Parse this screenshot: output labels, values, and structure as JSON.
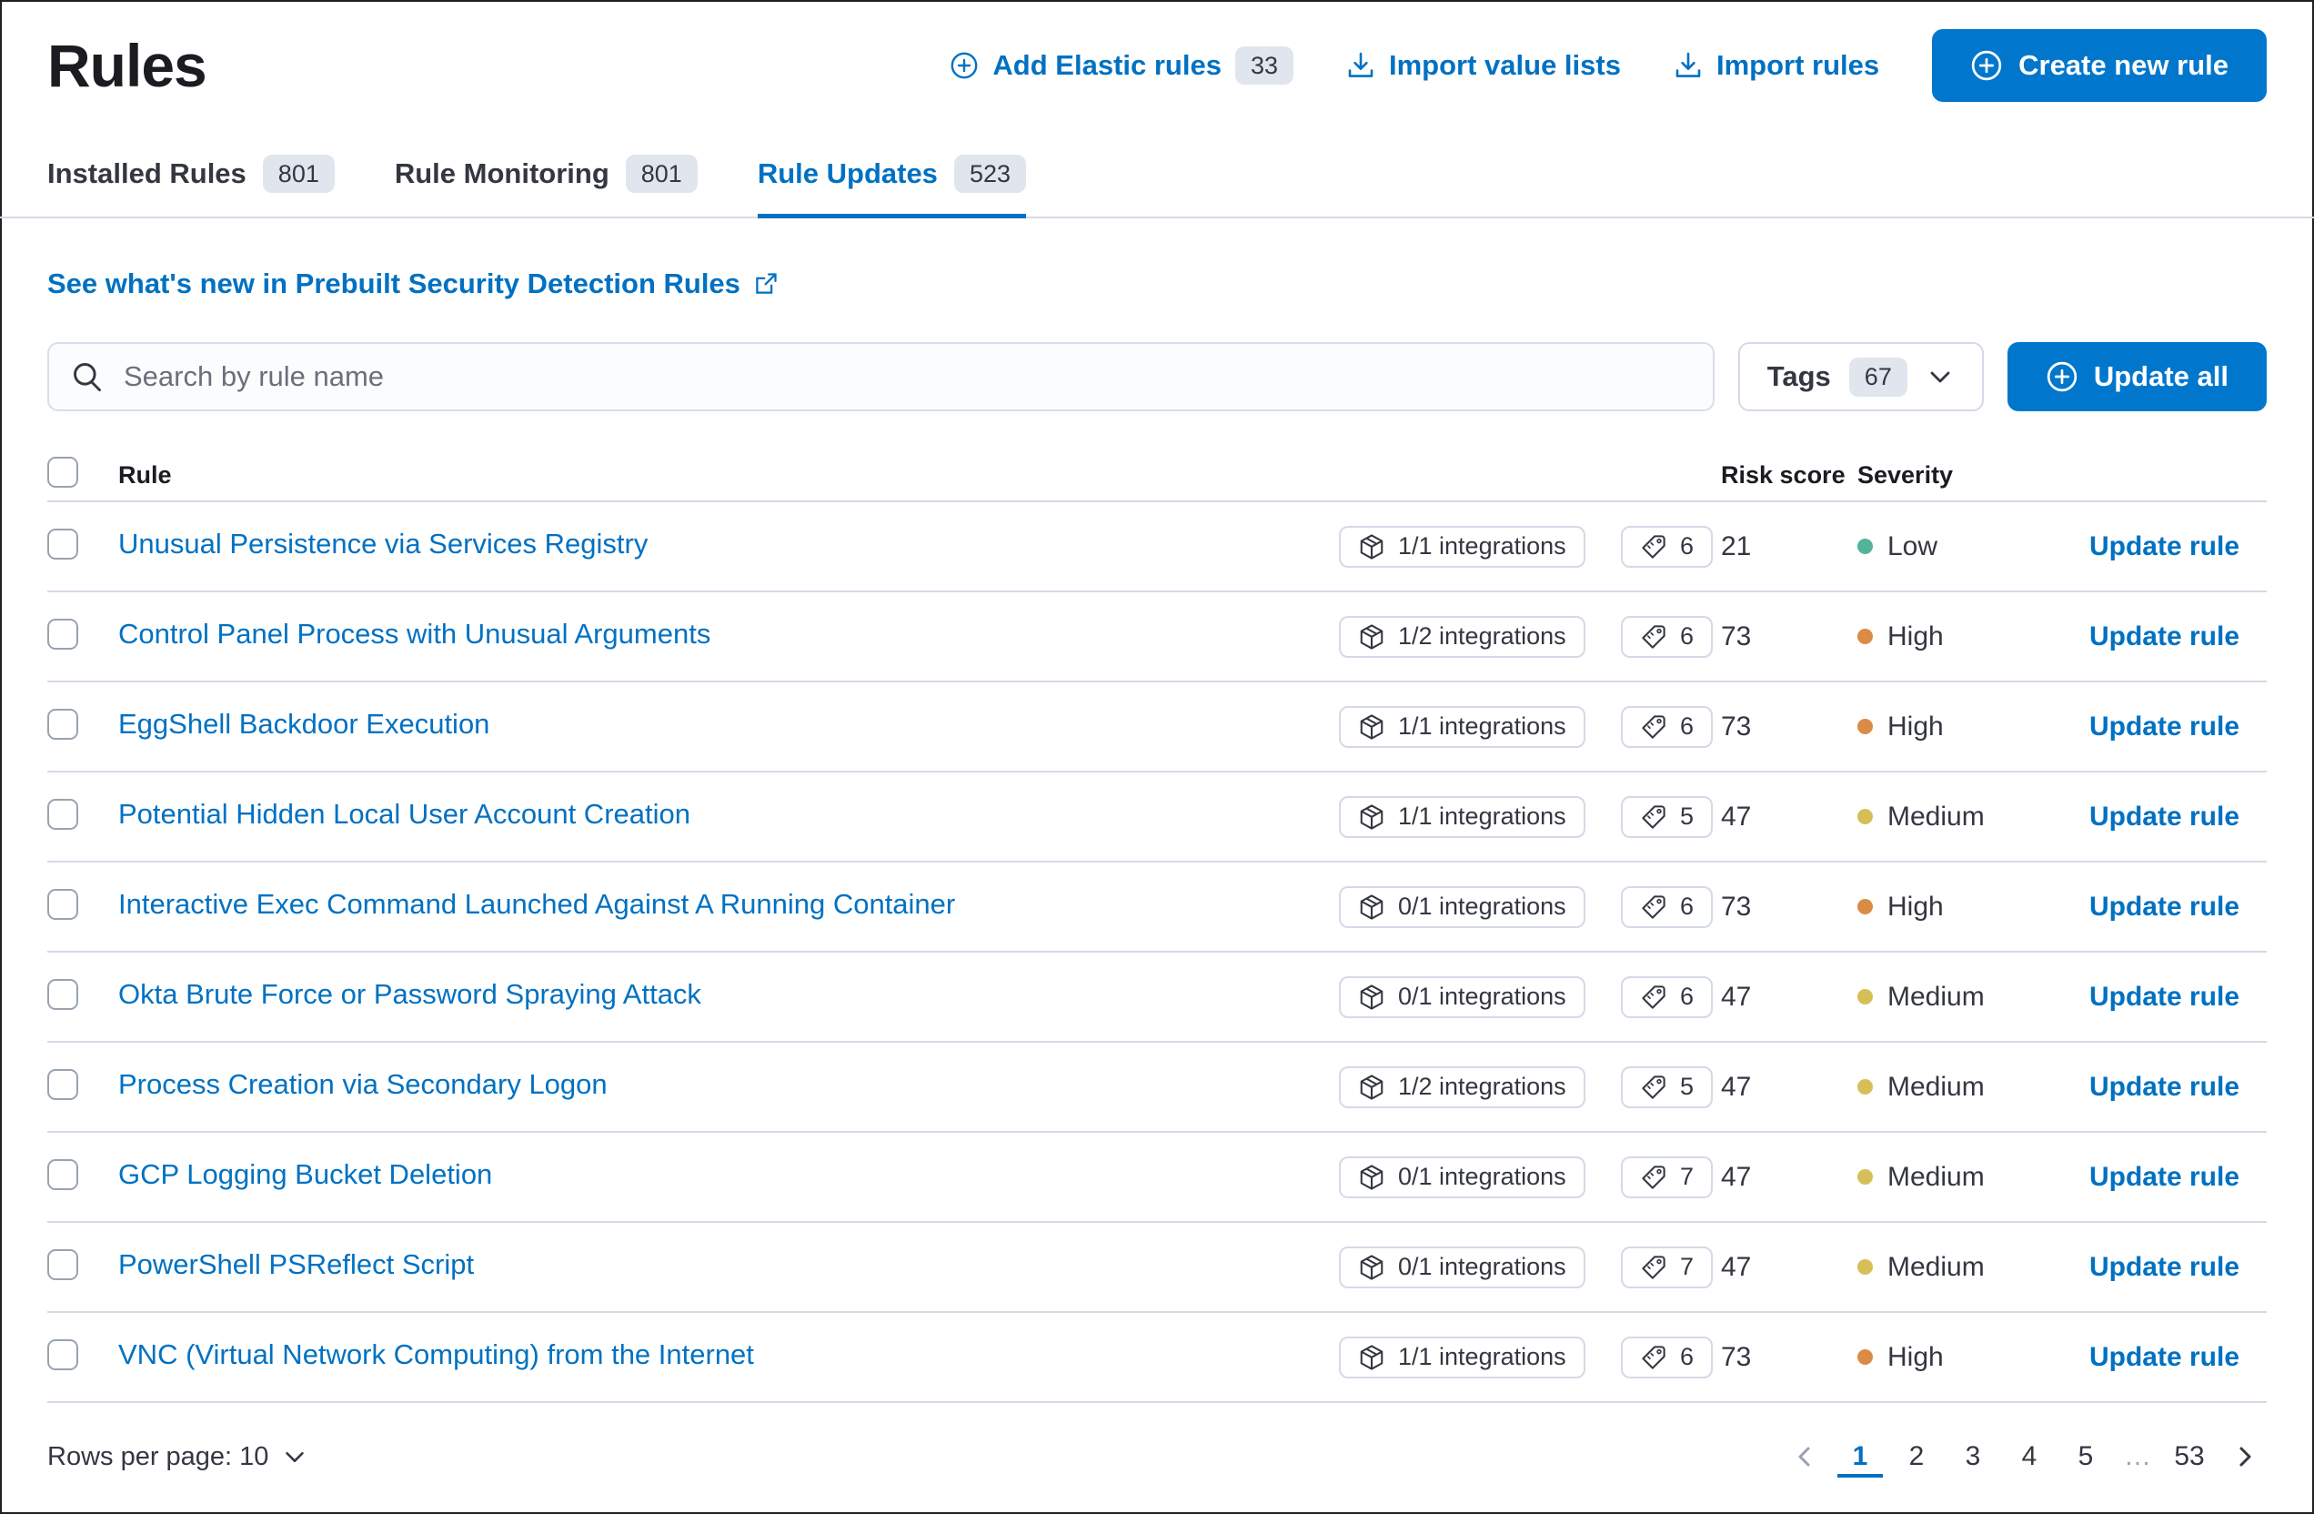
{
  "page_title": "Rules",
  "actions": {
    "add_elastic_rules": "Add Elastic rules",
    "add_elastic_rules_count": "33",
    "import_value_lists": "Import value lists",
    "import_rules": "Import rules",
    "create_new_rule": "Create new rule"
  },
  "tabs": [
    {
      "label": "Installed Rules",
      "count": "801",
      "active": false
    },
    {
      "label": "Rule Monitoring",
      "count": "801",
      "active": false
    },
    {
      "label": "Rule Updates",
      "count": "523",
      "active": true
    }
  ],
  "whats_new_link": "See what's new in Prebuilt Security Detection Rules",
  "filters": {
    "search_placeholder": "Search by rule name",
    "tags_label": "Tags",
    "tags_count": "67",
    "update_all": "Update all"
  },
  "table": {
    "headers": {
      "rule": "Rule",
      "risk_score": "Risk score",
      "severity": "Severity"
    },
    "update_action_label": "Update rule",
    "rows": [
      {
        "name": "Unusual Persistence via Services Registry",
        "integrations": "1/1 integrations",
        "tags": "6",
        "risk_score": "21",
        "severity": "Low"
      },
      {
        "name": "Control Panel Process with Unusual Arguments",
        "integrations": "1/2 integrations",
        "tags": "6",
        "risk_score": "73",
        "severity": "High"
      },
      {
        "name": "EggShell Backdoor Execution",
        "integrations": "1/1 integrations",
        "tags": "6",
        "risk_score": "73",
        "severity": "High"
      },
      {
        "name": "Potential Hidden Local User Account Creation",
        "integrations": "1/1 integrations",
        "tags": "5",
        "risk_score": "47",
        "severity": "Medium"
      },
      {
        "name": "Interactive Exec Command Launched Against A Running Container",
        "integrations": "0/1 integrations",
        "tags": "6",
        "risk_score": "73",
        "severity": "High"
      },
      {
        "name": "Okta Brute Force or Password Spraying Attack",
        "integrations": "0/1 integrations",
        "tags": "6",
        "risk_score": "47",
        "severity": "Medium"
      },
      {
        "name": "Process Creation via Secondary Logon",
        "integrations": "1/2 integrations",
        "tags": "5",
        "risk_score": "47",
        "severity": "Medium"
      },
      {
        "name": "GCP Logging Bucket Deletion",
        "integrations": "0/1 integrations",
        "tags": "7",
        "risk_score": "47",
        "severity": "Medium"
      },
      {
        "name": "PowerShell PSReflect Script",
        "integrations": "0/1 integrations",
        "tags": "7",
        "risk_score": "47",
        "severity": "Medium"
      },
      {
        "name": "VNC (Virtual Network Computing) from the Internet",
        "integrations": "1/1 integrations",
        "tags": "6",
        "risk_score": "73",
        "severity": "High"
      }
    ]
  },
  "severity_colors": {
    "Low": "#54B399",
    "Medium": "#D6BF57",
    "High": "#DA8B45"
  },
  "pagination": {
    "rows_per_page_label": "Rows per page: 10",
    "pages": [
      "1",
      "2",
      "3",
      "4",
      "5",
      "…",
      "53"
    ],
    "active_page": "1"
  },
  "colors": {
    "primary_button": "#0077CC",
    "link_blue": "#0071C2",
    "badge_gray": "#E0E5EE",
    "divider": "#D3DAE6"
  }
}
